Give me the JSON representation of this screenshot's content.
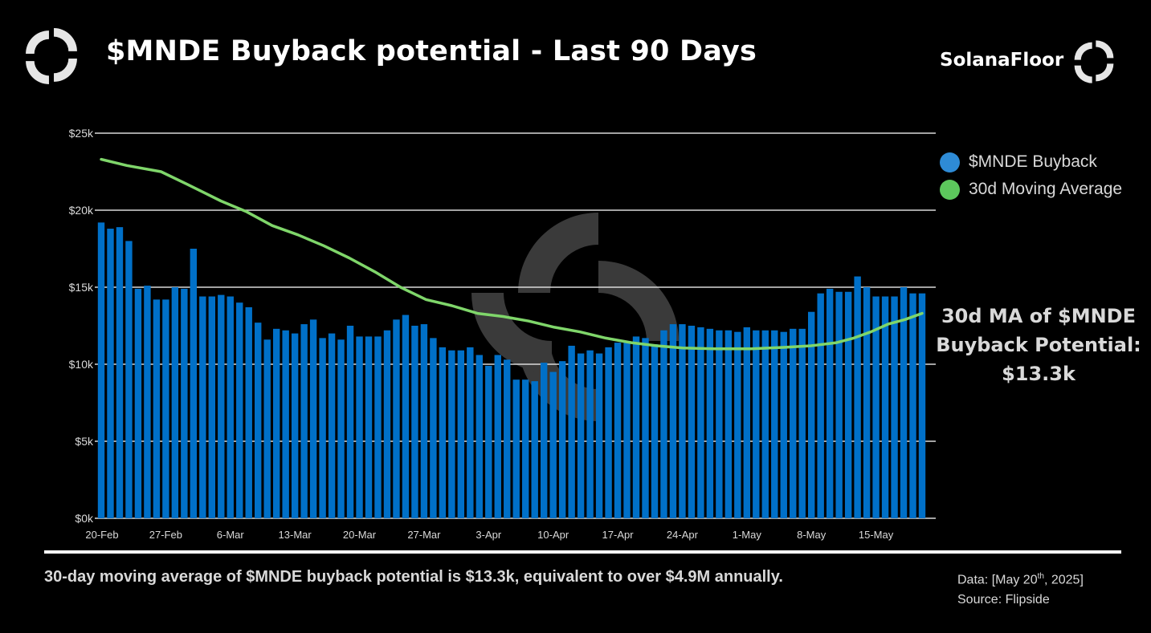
{
  "header": {
    "title": "$MNDE Buyback potential - Last 90 Days",
    "brand": "SolanaFloor",
    "logo_icon": "solanafloor-logo-icon"
  },
  "legend": {
    "items": [
      {
        "label": "$MNDE Buyback",
        "color": "#2E8BD6"
      },
      {
        "label": "30d Moving Average",
        "color": "#5CC85C"
      }
    ]
  },
  "annotation": {
    "line1": "30d MA of $MNDE",
    "line2": "Buyback Potential:",
    "line3": "$13.3k"
  },
  "footer": {
    "summary": "30-day moving average of $MNDE buyback potential is $13.3k, equivalent to over $4.9M annually.",
    "data_label": "Data: [May 20",
    "data_sup": "th",
    "data_suffix": ", 2025]",
    "source": "Source: Flipside"
  },
  "colors": {
    "bar": "#0070C8",
    "line": "#7FD66A",
    "grid": "#D9D9D9",
    "watermark": "#3a3a3a",
    "background": "#000000"
  },
  "chart_data": {
    "type": "bar",
    "title": "$MNDE Buyback potential - Last 90 Days",
    "xlabel": "",
    "ylabel": "",
    "ylim": [
      0,
      25000
    ],
    "yticks": [
      0,
      5000,
      10000,
      15000,
      20000,
      25000
    ],
    "ytick_labels": [
      "$0k",
      "$5k",
      "$10k",
      "$15k",
      "$20k",
      "$25k"
    ],
    "xtick_labels": [
      "20-Feb",
      "27-Feb",
      "6-Mar",
      "13-Mar",
      "20-Mar",
      "27-Mar",
      "3-Apr",
      "10-Apr",
      "17-Apr",
      "24-Apr",
      "1-May",
      "8-May",
      "15-May"
    ],
    "xtick_every": 7,
    "grid": true,
    "legend_position": "right",
    "series": [
      {
        "name": "$MNDE Buyback",
        "type": "bar",
        "values": [
          19.2,
          18.8,
          18.9,
          18.0,
          14.9,
          15.1,
          14.2,
          14.2,
          15.0,
          14.9,
          17.5,
          14.4,
          14.4,
          14.5,
          14.4,
          14.0,
          13.7,
          12.7,
          11.6,
          12.3,
          12.2,
          12.0,
          12.6,
          12.9,
          11.7,
          12.0,
          11.6,
          12.5,
          11.8,
          11.8,
          11.8,
          12.2,
          12.9,
          13.2,
          12.5,
          12.6,
          11.7,
          11.1,
          10.9,
          10.9,
          11.1,
          10.6,
          9.9,
          10.6,
          10.3,
          9.0,
          9.0,
          8.9,
          10.1,
          9.5,
          10.2,
          11.2,
          10.7,
          10.9,
          10.7,
          11.1,
          11.4,
          11.4,
          11.8,
          11.7,
          11.3,
          12.2,
          12.6,
          12.6,
          12.5,
          12.4,
          12.3,
          12.2,
          12.2,
          12.1,
          12.4,
          12.2,
          12.2,
          12.2,
          12.1,
          12.3,
          12.3,
          13.4,
          14.6,
          14.9,
          14.7,
          14.7,
          15.7,
          15.0,
          14.4,
          14.4,
          14.4,
          15.0,
          14.6,
          14.6
        ],
        "unit": "k USD"
      },
      {
        "name": "30d Moving Average",
        "type": "line",
        "points": [
          [
            0,
            23.3
          ],
          [
            3,
            22.9
          ],
          [
            7,
            22.5
          ],
          [
            10,
            21.7
          ],
          [
            14,
            20.6
          ],
          [
            17,
            19.9
          ],
          [
            20,
            19.0
          ],
          [
            23,
            18.4
          ],
          [
            26,
            17.7
          ],
          [
            29,
            16.9
          ],
          [
            32,
            16.0
          ],
          [
            35,
            15.0
          ],
          [
            38,
            14.2
          ],
          [
            41,
            13.8
          ],
          [
            44,
            13.3
          ],
          [
            47,
            13.1
          ],
          [
            50,
            12.8
          ],
          [
            53,
            12.4
          ],
          [
            56,
            12.1
          ],
          [
            59,
            11.7
          ],
          [
            62,
            11.4
          ],
          [
            65,
            11.2
          ],
          [
            68,
            11.05
          ],
          [
            72,
            11.0
          ],
          [
            76,
            11.0
          ],
          [
            80,
            11.1
          ],
          [
            83,
            11.2
          ],
          [
            86,
            11.4
          ],
          [
            88,
            11.7
          ],
          [
            90,
            12.1
          ],
          [
            92,
            12.6
          ],
          [
            94,
            12.9
          ],
          [
            96,
            13.3
          ]
        ],
        "points_note": "x = bar index scaled 0..96 relative (see render), y in k USD",
        "final_value": "13.3k"
      }
    ]
  }
}
